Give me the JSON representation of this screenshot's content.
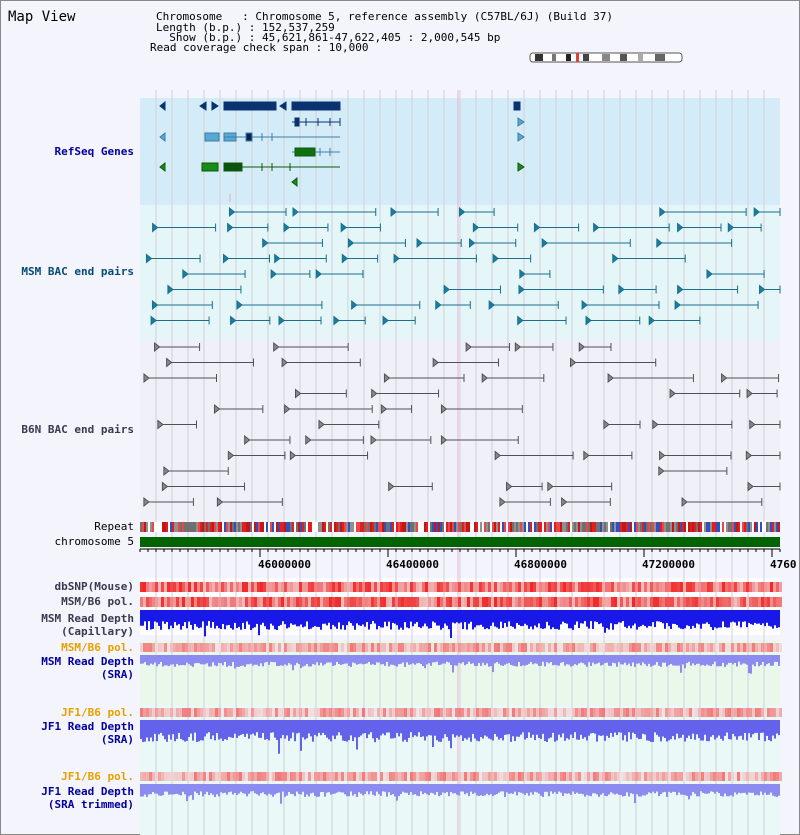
{
  "title": "Map View",
  "info": {
    "chromosome": "Chromosome   : Chromosome 5, reference assembly (C57BL/6J) (Build 37)",
    "length": "Length (b.p.) : 152,537,259",
    "show": "  Show (b.p.) : 45,621,861-47,622,405 : 2,000,545 bp",
    "coverage": "Read coverage check span : 10,000"
  },
  "tracks": {
    "refseq": "RefSeq Genes",
    "msm_bac": "MSM BAC end pairs",
    "b6n_bac": "B6N BAC end pairs",
    "repeat": "Repeat",
    "chromosome": "chromosome 5",
    "dbsnp": "dbSNP(Mouse)",
    "msm_b6_pol": "MSM/B6 pol.",
    "msm_depth_cap_1": "MSM Read Depth",
    "msm_depth_cap_2": "(Capillary)",
    "msm_b6_pol_sra": "MSM/B6 pol.",
    "msm_depth_sra_1": "MSM Read Depth",
    "msm_depth_sra_2": "(SRA)",
    "jf1_b6_pol": "JF1/B6 pol.",
    "jf1_depth_1": "JF1 Read Depth",
    "jf1_depth_2": "(SRA)",
    "jf1_b6_pol_trim": "JF1/B6 pol.",
    "jf1_depth_trim_1": "JF1 Read Depth",
    "jf1_depth_trim_2": "(SRA trimmed)"
  },
  "axis": {
    "ticks": [
      "46000000",
      "46400000",
      "46800000",
      "47200000",
      "4760"
    ]
  },
  "colors": {
    "refseq_bg": "#d4ecf8",
    "msm_bg": "#e4f6f8",
    "depth_bg": "#eaf8ec",
    "chromosome_bar": "#006400",
    "capillary_depth": "#1818e8",
    "sra_depth": "#8c8cf0"
  }
}
